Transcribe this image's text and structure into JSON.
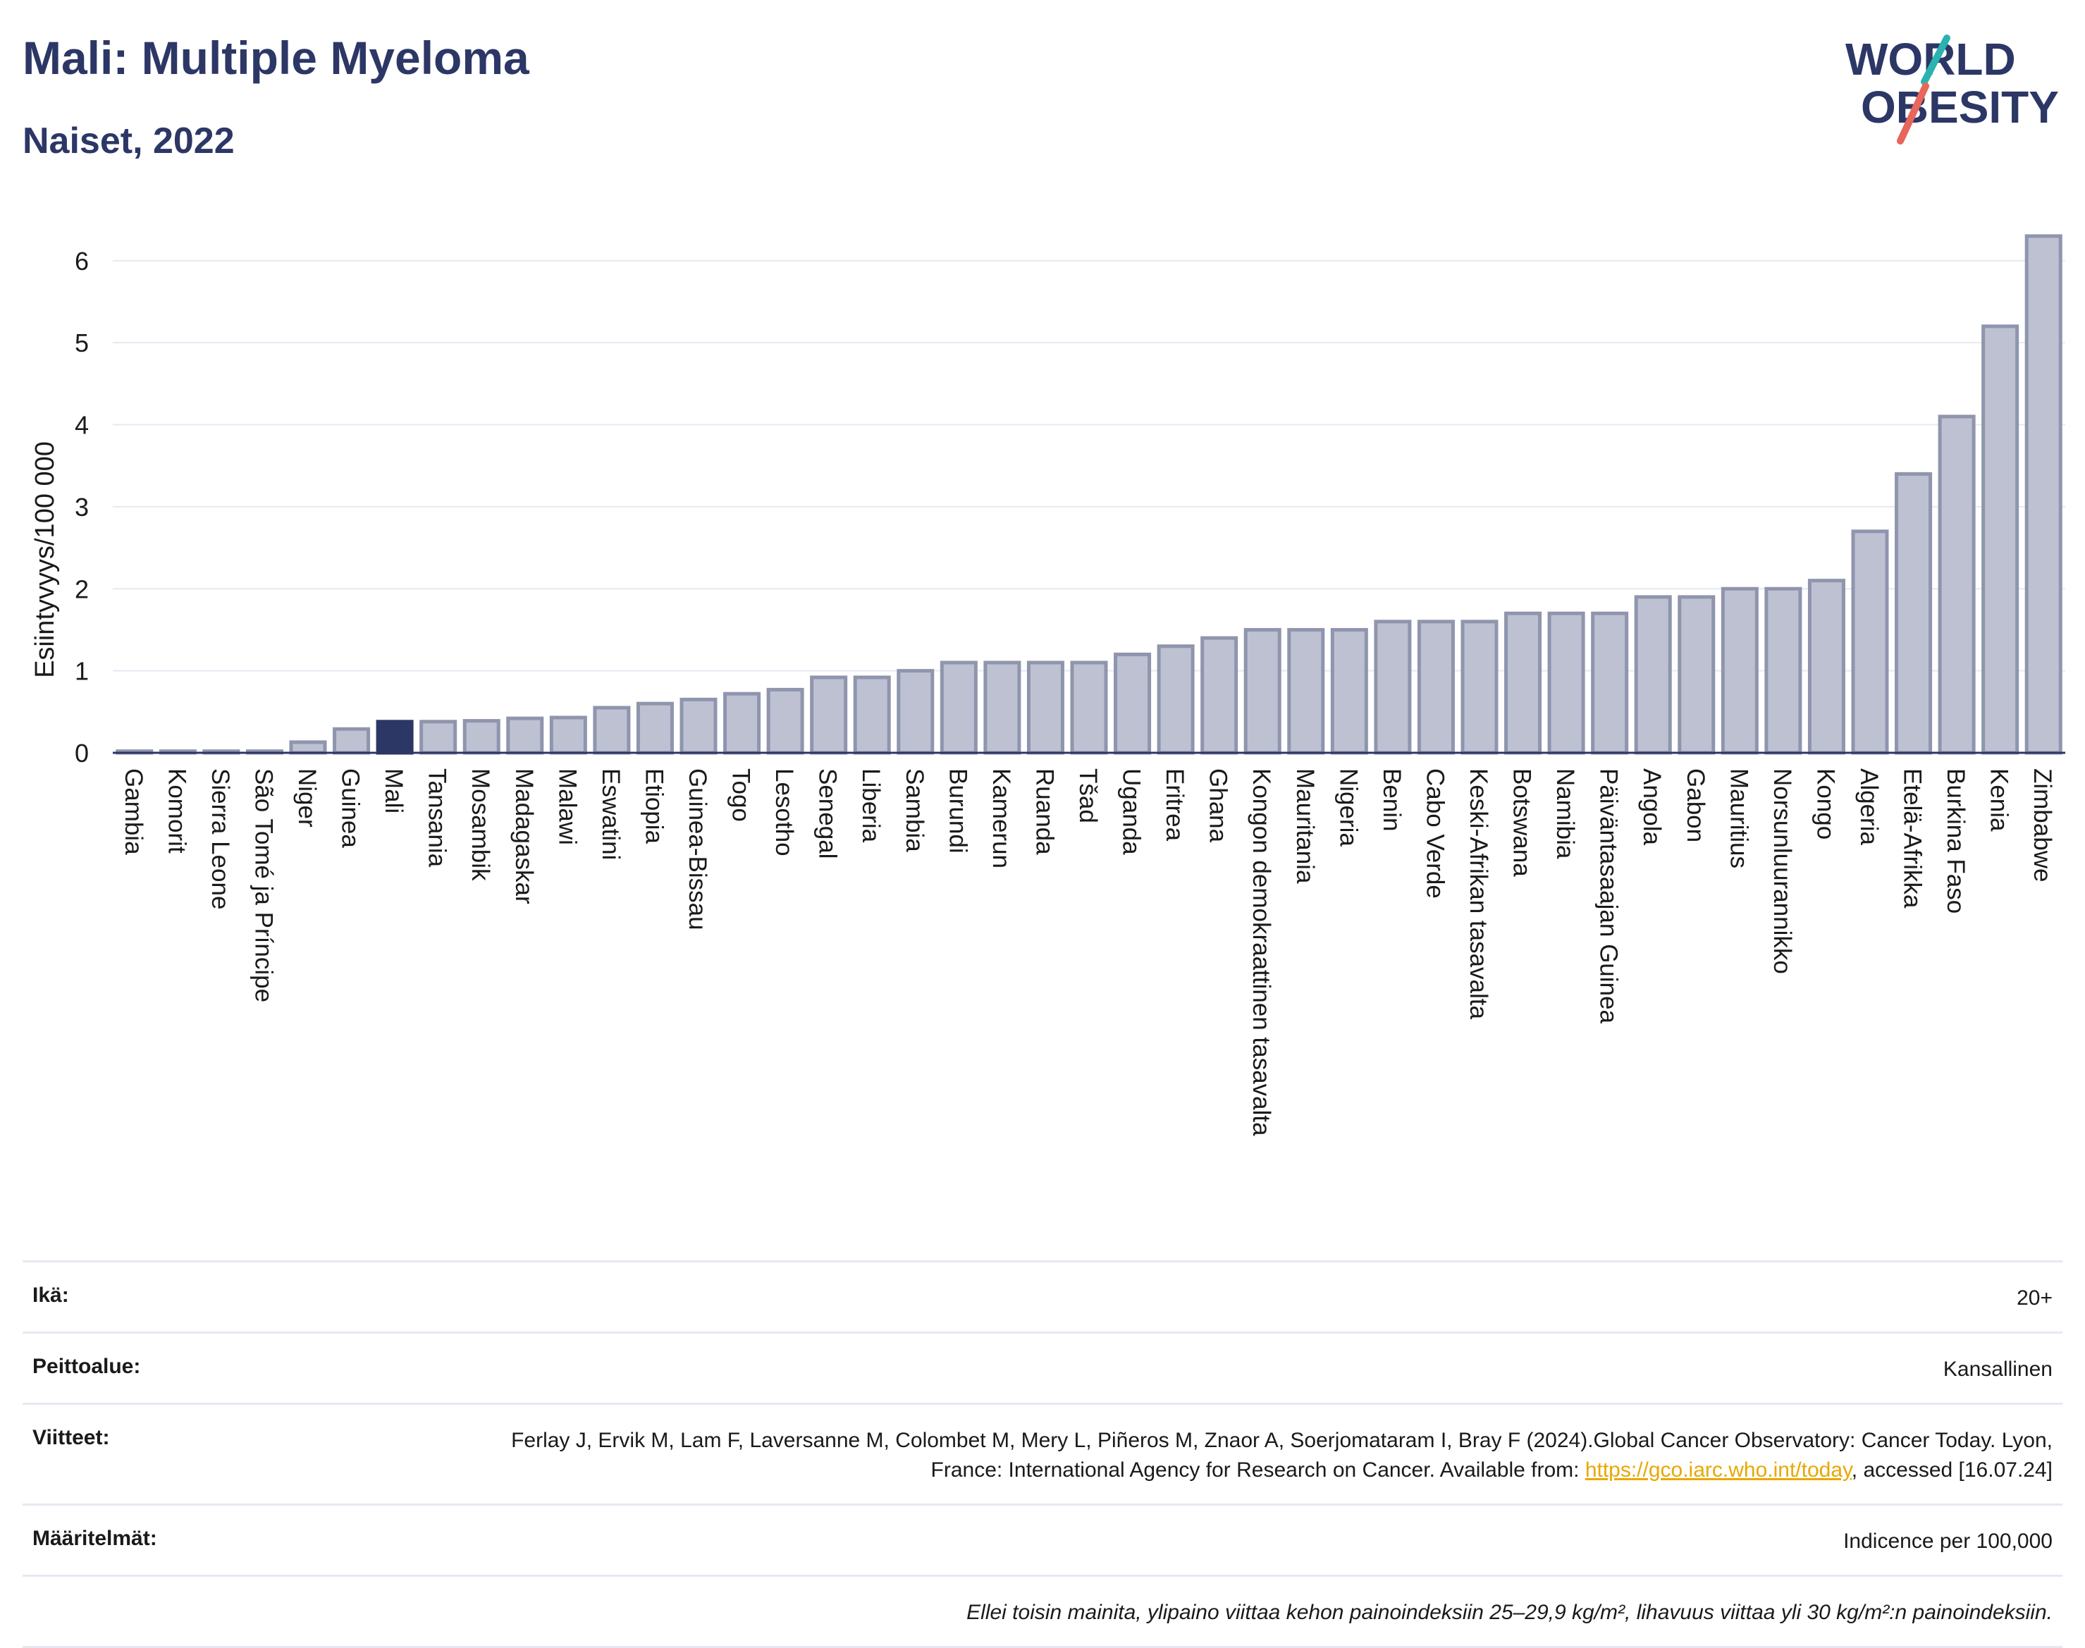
{
  "header": {
    "title": "Mali: Multiple Myeloma",
    "subtitle": "Naiset, 2022"
  },
  "logo": {
    "line1": "WORLD",
    "line2": "OBESITY"
  },
  "colors": {
    "title": "#2c3766",
    "bar": "#bdc1d1",
    "bar_border": "#8f95ad",
    "highlight": "#2c3766",
    "grid": "#e6e9f2",
    "link": "#e8a800",
    "logo_teal": "#2ab3b1",
    "logo_red": "#e8665a"
  },
  "chart_data": {
    "type": "bar",
    "ylabel": "Esiintyvyys/100 000",
    "ylim": [
      0,
      6.6
    ],
    "yticks": [
      0,
      1,
      2,
      3,
      4,
      5,
      6
    ],
    "grid": true,
    "highlight": "Mali",
    "categories": [
      "Gambia",
      "Komorit",
      "Sierra Leone",
      "São Tomé ja Príncipe",
      "Niger",
      "Guinea",
      "Mali",
      "Tansania",
      "Mosambik",
      "Madagaskar",
      "Malawi",
      "Eswatini",
      "Etiopia",
      "Guinea-Bissau",
      "Togo",
      "Lesotho",
      "Senegal",
      "Liberia",
      "Sambia",
      "Burundi",
      "Kamerun",
      "Ruanda",
      "Tšad",
      "Uganda",
      "Eritrea",
      "Ghana",
      "Kongon demokraattinen tasavalta",
      "Mauritania",
      "Nigeria",
      "Benin",
      "Cabo Verde",
      "Keski-Afrikan tasavalta",
      "Botswana",
      "Namibia",
      "Päiväntasaajan Guinea",
      "Angola",
      "Gabon",
      "Mauritius",
      "Norsunluurannikko",
      "Kongo",
      "Algeria",
      "Etelä-Afrikka",
      "Burkina Faso",
      "Kenia",
      "Zimbabwe"
    ],
    "values": [
      0.02,
      0.02,
      0.02,
      0.02,
      0.13,
      0.29,
      0.38,
      0.38,
      0.39,
      0.42,
      0.43,
      0.55,
      0.6,
      0.65,
      0.72,
      0.77,
      0.92,
      0.92,
      1.0,
      1.1,
      1.1,
      1.1,
      1.1,
      1.2,
      1.3,
      1.4,
      1.5,
      1.5,
      1.5,
      1.6,
      1.6,
      1.6,
      1.7,
      1.7,
      1.7,
      1.9,
      1.9,
      2.0,
      2.0,
      2.1,
      2.7,
      3.4,
      4.1,
      5.2,
      6.3
    ]
  },
  "meta": {
    "age_label": "Ikä:",
    "age_value": "20+",
    "coverage_label": "Peittoalue:",
    "coverage_value": "Kansallinen",
    "refs_label": "Viitteet:",
    "refs_text_1": "Ferlay J, Ervik M, Lam F, Laversanne M, Colombet M, Mery L, Piñeros M, Znaor A, Soerjomataram I, Bray F (2024).Global Cancer Observatory: Cancer Today. Lyon, France: International Agency for Research on Cancer. Available from: ",
    "refs_link": "https://gco.iarc.who.int/today",
    "refs_text_2": ", accessed [16.07.24]",
    "defs_label": "Määritelmät:",
    "defs_value": "Indicence per 100,000",
    "note": "Ellei toisin mainita, ylipaino viittaa kehon painoindeksiin 25–29,9 kg/m², lihavuus viittaa yli 30 kg/m²:n painoindeksiin."
  }
}
